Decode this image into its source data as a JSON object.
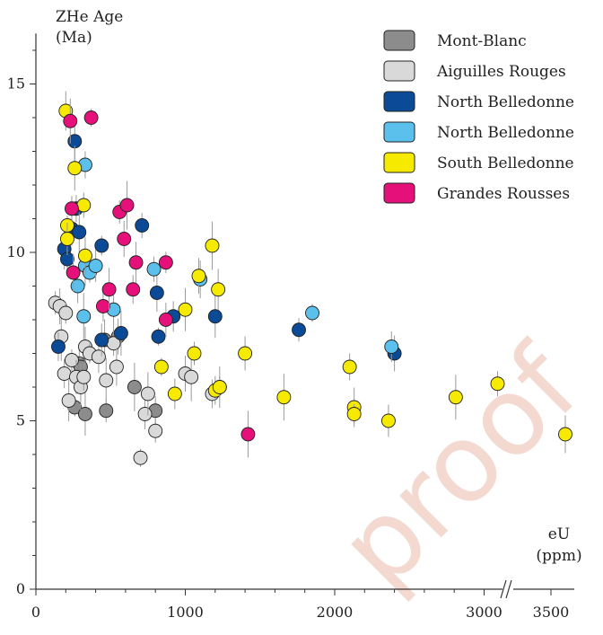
{
  "chart_data": {
    "type": "scatter",
    "title": "",
    "ylabel_lines": [
      "ZHe Age",
      "(Ma)"
    ],
    "xlabel_lines": [
      "eU",
      "(ppm)"
    ],
    "ylim": [
      0,
      16.5
    ],
    "xlim": [
      0,
      3700
    ],
    "x_break": {
      "data_at": 3200,
      "tick_after_break": "3500",
      "tick_after_break_pos": 3500
    },
    "xticks": [
      {
        "v": 0,
        "label": "0"
      },
      {
        "v": 1000,
        "label": "1000"
      },
      {
        "v": 2000,
        "label": "2000"
      },
      {
        "v": 3000,
        "label": "3000"
      },
      {
        "v": 3500,
        "label": "3500"
      }
    ],
    "yticks": [
      {
        "v": 0,
        "label": "0"
      },
      {
        "v": 5,
        "label": "5"
      },
      {
        "v": 10,
        "label": "10"
      },
      {
        "v": 15,
        "label": "15"
      }
    ],
    "legend_position": "top-right",
    "watermark": "proof",
    "series": [
      {
        "name": "Mont-Blanc",
        "color": "#8c8c8c",
        "points": [
          {
            "x": 260,
            "y": 5.4
          },
          {
            "x": 290,
            "y": 6.7
          },
          {
            "x": 330,
            "y": 5.2
          },
          {
            "x": 470,
            "y": 5.3
          },
          {
            "x": 550,
            "y": 7.5
          },
          {
            "x": 660,
            "y": 6.0
          },
          {
            "x": 800,
            "y": 5.3
          },
          {
            "x": 460,
            "y": 7.4
          },
          {
            "x": 300,
            "y": 6.6
          }
        ]
      },
      {
        "name": "Aiguilles Rouges",
        "color": "#d9d9d9",
        "points": [
          {
            "x": 130,
            "y": 8.5
          },
          {
            "x": 160,
            "y": 8.4
          },
          {
            "x": 170,
            "y": 7.5
          },
          {
            "x": 190,
            "y": 6.4
          },
          {
            "x": 220,
            "y": 5.6
          },
          {
            "x": 240,
            "y": 6.8
          },
          {
            "x": 270,
            "y": 6.3
          },
          {
            "x": 300,
            "y": 6.0
          },
          {
            "x": 320,
            "y": 6.3
          },
          {
            "x": 330,
            "y": 7.2
          },
          {
            "x": 360,
            "y": 7.0
          },
          {
            "x": 420,
            "y": 6.9
          },
          {
            "x": 470,
            "y": 6.2
          },
          {
            "x": 520,
            "y": 7.3
          },
          {
            "x": 540,
            "y": 6.6
          },
          {
            "x": 700,
            "y": 3.9
          },
          {
            "x": 730,
            "y": 5.2
          },
          {
            "x": 750,
            "y": 5.8
          },
          {
            "x": 800,
            "y": 4.7
          },
          {
            "x": 1000,
            "y": 6.4
          },
          {
            "x": 1040,
            "y": 6.3
          },
          {
            "x": 1180,
            "y": 5.8
          },
          {
            "x": 1230,
            "y": 6.0
          },
          {
            "x": 200,
            "y": 8.2
          }
        ]
      },
      {
        "name": "North Belledonne",
        "color": "#0b4a96",
        "points": [
          {
            "x": 150,
            "y": 7.2
          },
          {
            "x": 190,
            "y": 10.1
          },
          {
            "x": 210,
            "y": 9.8
          },
          {
            "x": 240,
            "y": 10.7
          },
          {
            "x": 260,
            "y": 13.3
          },
          {
            "x": 270,
            "y": 11.3
          },
          {
            "x": 290,
            "y": 10.6
          },
          {
            "x": 440,
            "y": 10.2
          },
          {
            "x": 440,
            "y": 7.4
          },
          {
            "x": 570,
            "y": 7.6
          },
          {
            "x": 710,
            "y": 10.8
          },
          {
            "x": 810,
            "y": 8.8
          },
          {
            "x": 820,
            "y": 7.5
          },
          {
            "x": 920,
            "y": 8.1
          },
          {
            "x": 1200,
            "y": 8.1
          },
          {
            "x": 1760,
            "y": 7.7
          },
          {
            "x": 2400,
            "y": 7.0
          }
        ]
      },
      {
        "name": "North Belledonne",
        "color": "#5bc1ec",
        "points": [
          {
            "x": 280,
            "y": 9.0
          },
          {
            "x": 320,
            "y": 8.1
          },
          {
            "x": 330,
            "y": 12.6
          },
          {
            "x": 330,
            "y": 9.6
          },
          {
            "x": 360,
            "y": 9.4
          },
          {
            "x": 400,
            "y": 9.6
          },
          {
            "x": 520,
            "y": 8.3
          },
          {
            "x": 790,
            "y": 9.5
          },
          {
            "x": 1100,
            "y": 9.2
          },
          {
            "x": 1850,
            "y": 8.2
          },
          {
            "x": 2380,
            "y": 7.2
          }
        ]
      },
      {
        "name": "South Belledonne",
        "color": "#f5ea00",
        "points": [
          {
            "x": 200,
            "y": 14.2
          },
          {
            "x": 210,
            "y": 10.8
          },
          {
            "x": 210,
            "y": 10.4
          },
          {
            "x": 260,
            "y": 12.5
          },
          {
            "x": 320,
            "y": 11.4
          },
          {
            "x": 330,
            "y": 9.9
          },
          {
            "x": 840,
            "y": 6.6
          },
          {
            "x": 930,
            "y": 5.8
          },
          {
            "x": 1000,
            "y": 8.3
          },
          {
            "x": 1060,
            "y": 7.0
          },
          {
            "x": 1090,
            "y": 9.3
          },
          {
            "x": 1180,
            "y": 10.2
          },
          {
            "x": 1200,
            "y": 5.9
          },
          {
            "x": 1220,
            "y": 8.9
          },
          {
            "x": 1230,
            "y": 6.0
          },
          {
            "x": 1400,
            "y": 7.0
          },
          {
            "x": 1660,
            "y": 5.7
          },
          {
            "x": 2100,
            "y": 6.6
          },
          {
            "x": 2130,
            "y": 5.4
          },
          {
            "x": 2130,
            "y": 5.2
          },
          {
            "x": 2360,
            "y": 5.0
          },
          {
            "x": 2810,
            "y": 5.7
          },
          {
            "x": 3090,
            "y": 6.1
          },
          {
            "x": 3600,
            "y": 4.6
          }
        ]
      },
      {
        "name": "Grandes Rousses",
        "color": "#e5107a",
        "points": [
          {
            "x": 230,
            "y": 13.9
          },
          {
            "x": 240,
            "y": 11.3
          },
          {
            "x": 250,
            "y": 9.4
          },
          {
            "x": 370,
            "y": 14.0
          },
          {
            "x": 450,
            "y": 8.4
          },
          {
            "x": 490,
            "y": 8.9
          },
          {
            "x": 560,
            "y": 11.2
          },
          {
            "x": 590,
            "y": 10.4
          },
          {
            "x": 610,
            "y": 11.4
          },
          {
            "x": 650,
            "y": 8.9
          },
          {
            "x": 670,
            "y": 9.7
          },
          {
            "x": 870,
            "y": 9.7
          },
          {
            "x": 870,
            "y": 8.0
          },
          {
            "x": 1420,
            "y": 4.6
          }
        ]
      }
    ]
  }
}
